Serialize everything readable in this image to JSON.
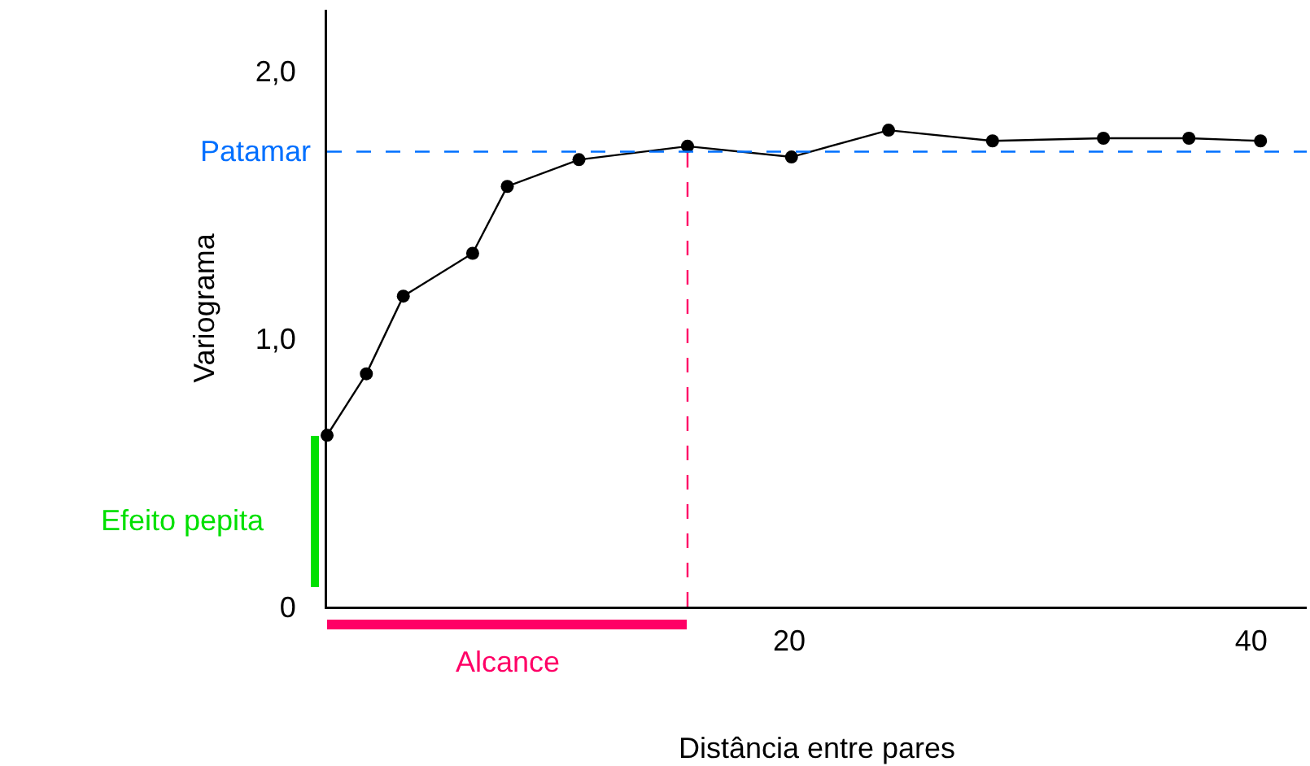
{
  "chart_data": {
    "type": "line",
    "xlabel": "Distância entre pares",
    "ylabel": "Variograma",
    "x": [
      0,
      1.7,
      3.3,
      6.3,
      7.8,
      10.9,
      15.6,
      20.1,
      24.3,
      28.8,
      33.6,
      37.3,
      40.4
    ],
    "series": [
      {
        "color": "#000000",
        "values": [
          0.64,
          0.87,
          1.16,
          1.32,
          1.57,
          1.67,
          1.72,
          1.68,
          1.78,
          1.74,
          1.75,
          1.75,
          1.74
        ]
      }
    ],
    "xlim": [
      0,
      42.4
    ],
    "xticks": [
      20,
      40
    ],
    "ylim": [
      0,
      2.23
    ],
    "yticks": [
      {
        "value": 0,
        "label": "0"
      },
      {
        "value": 1,
        "label": "1,0"
      },
      {
        "value": 2,
        "label": "2,0"
      }
    ],
    "ref_lines": [
      {
        "axis": "y",
        "value": 1.7,
        "label": "Patamar",
        "color": "#0070ff",
        "line_style": "dashed"
      },
      {
        "axis": "x",
        "value": 15.6,
        "label": null,
        "color": "#ff0066",
        "line_style": "dashed"
      }
    ],
    "annotations": [
      "Efeito pepita",
      "Alcance"
    ],
    "grid": false,
    "marker": "circle",
    "line_style": "solid"
  }
}
